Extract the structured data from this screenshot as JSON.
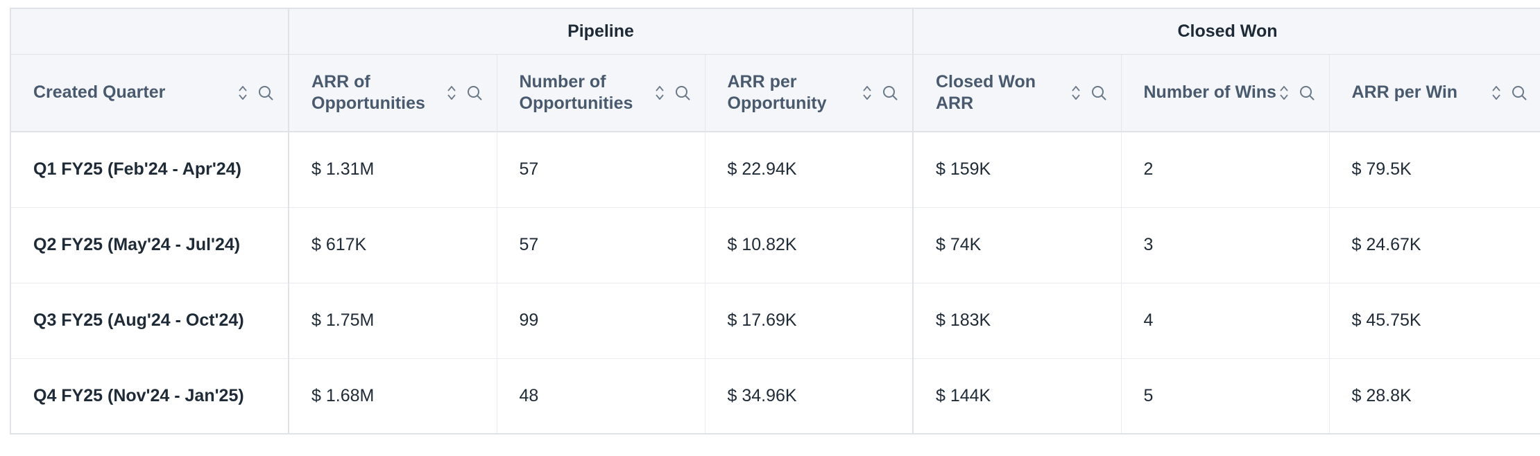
{
  "groups": {
    "pipeline": "Pipeline",
    "closed_won": "Closed Won"
  },
  "columns": {
    "quarter": "Created Quarter",
    "arr_opps": "ARR of Opportunities",
    "num_opps": "Number of Opportunities",
    "arr_per_opp": "ARR per Opportunity",
    "cw_arr": "Closed Won ARR",
    "num_wins": "Number of Wins",
    "arr_per_win": "ARR per Win"
  },
  "header_icons": [
    "sort-icon",
    "search-icon"
  ],
  "rows": [
    {
      "quarter": "Q1 FY25 (Feb'24 - Apr'24)",
      "arr_opps": "$ 1.31M",
      "num_opps": "57",
      "arr_per_opp": "$ 22.94K",
      "cw_arr": "$ 159K",
      "num_wins": "2",
      "arr_per_win": "$ 79.5K"
    },
    {
      "quarter": "Q2 FY25 (May'24 - Jul'24)",
      "arr_opps": "$ 617K",
      "num_opps": "57",
      "arr_per_opp": "$ 10.82K",
      "cw_arr": "$ 74K",
      "num_wins": "3",
      "arr_per_win": "$ 24.67K"
    },
    {
      "quarter": "Q3 FY25 (Aug'24 - Oct'24)",
      "arr_opps": "$ 1.75M",
      "num_opps": "99",
      "arr_per_opp": "$ 17.69K",
      "cw_arr": "$ 183K",
      "num_wins": "4",
      "arr_per_win": "$ 45.75K"
    },
    {
      "quarter": "Q4 FY25 (Nov'24 - Jan'25)",
      "arr_opps": "$ 1.68M",
      "num_opps": "48",
      "arr_per_opp": "$ 34.96K",
      "cw_arr": "$ 144K",
      "num_wins": "5",
      "arr_per_win": "$ 28.8K"
    }
  ]
}
